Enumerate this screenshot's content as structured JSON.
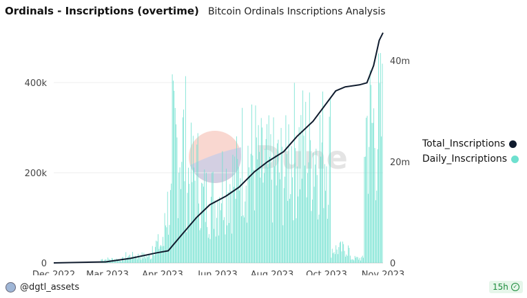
{
  "header": {
    "title": "Ordinals - Inscriptions (overtime)",
    "subtitle": "Bitcoin Ordinals Inscriptions Analysis"
  },
  "watermark": {
    "text": "Dune"
  },
  "footer": {
    "user": "@dgtl_assets",
    "age_badge": "15h"
  },
  "chart_data": {
    "type": "bar",
    "title": "Ordinals - Inscriptions (overtime)",
    "x_axis": {
      "ticks": [
        "Dec 2022",
        "Mar 2023",
        "Apr 2023",
        "Jun 2023",
        "Aug 2023",
        "Oct 2023",
        "Nov 2023"
      ],
      "range": [
        "2022-12-01",
        "2023-11-14"
      ]
    },
    "y_left": {
      "ticks": [
        "0",
        "200k",
        "400k"
      ],
      "ylim": [
        0,
        400000
      ]
    },
    "y_right": {
      "ticks": [
        "0",
        "20m",
        "40m"
      ],
      "ylim": [
        0,
        40000000
      ]
    },
    "legend": {
      "placement": "right",
      "entries": [
        "Total_Inscriptions",
        "Daily_Inscriptions"
      ]
    },
    "grid": true,
    "series": [
      {
        "name": "Daily_Inscriptions",
        "type": "bar",
        "axis": "left",
        "color": "#6ee0cf",
        "daily_estimate": [
          {
            "from": "2022-12-01",
            "to": "2023-01-20",
            "value": 0
          },
          {
            "from": "2023-01-20",
            "to": "2023-02-15",
            "value": 8000
          },
          {
            "from": "2023-02-15",
            "to": "2023-03-15",
            "value": 15000
          },
          {
            "from": "2023-03-15",
            "to": "2023-03-28",
            "value": 40000
          },
          {
            "from": "2023-03-28",
            "to": "2023-04-05",
            "value": 120000
          },
          {
            "from": "2023-04-05",
            "to": "2023-04-20",
            "value": 260000
          },
          {
            "from": "2023-04-20",
            "to": "2023-05-05",
            "value": 190000
          },
          {
            "from": "2023-05-05",
            "to": "2023-05-25",
            "value": 140000
          },
          {
            "from": "2023-05-25",
            "to": "2023-06-15",
            "value": 180000
          },
          {
            "from": "2023-06-15",
            "to": "2023-07-05",
            "value": 230000
          },
          {
            "from": "2023-07-05",
            "to": "2023-08-05",
            "value": 200000
          },
          {
            "from": "2023-08-05",
            "to": "2023-09-20",
            "value": 250000
          },
          {
            "from": "2023-09-20",
            "to": "2023-10-10",
            "value": 30000
          },
          {
            "from": "2023-10-10",
            "to": "2023-10-25",
            "value": 10000
          },
          {
            "from": "2023-10-25",
            "to": "2023-11-14",
            "value": 300000
          }
        ]
      },
      {
        "name": "Total_Inscriptions",
        "type": "line",
        "axis": "right",
        "color": "#0f1b2d",
        "points": [
          [
            "2022-12-01",
            0
          ],
          [
            "2023-01-25",
            0.2
          ],
          [
            "2023-02-20",
            0.9
          ],
          [
            "2023-03-20",
            2.0
          ],
          [
            "2023-04-01",
            2.4
          ],
          [
            "2023-04-15",
            5.5
          ],
          [
            "2023-05-01",
            9.0
          ],
          [
            "2023-05-15",
            11.5
          ],
          [
            "2023-06-01",
            13.2
          ],
          [
            "2023-06-15",
            15.0
          ],
          [
            "2023-07-01",
            18.0
          ],
          [
            "2023-07-15",
            20.0
          ],
          [
            "2023-08-01",
            22.0
          ],
          [
            "2023-08-15",
            25.0
          ],
          [
            "2023-09-01",
            28.0
          ],
          [
            "2023-09-15",
            31.5
          ],
          [
            "2023-09-25",
            34.0
          ],
          [
            "2023-10-05",
            34.8
          ],
          [
            "2023-10-20",
            35.2
          ],
          [
            "2023-10-28",
            35.6
          ],
          [
            "2023-11-04",
            39.0
          ],
          [
            "2023-11-10",
            44.0
          ],
          [
            "2023-11-14",
            45.5
          ]
        ]
      }
    ]
  }
}
